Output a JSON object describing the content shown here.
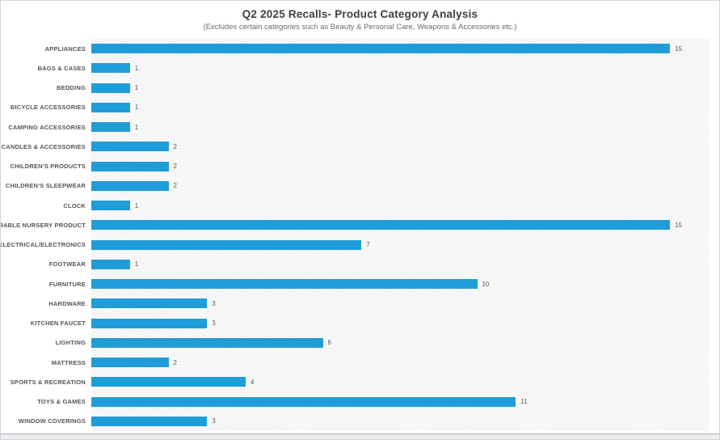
{
  "chart_data": {
    "type": "bar",
    "orientation": "horizontal",
    "title": "Q2 2025 Recalls- Product Category Analysis",
    "subtitle": "(Excludes certain categories such as Beauty & Personal Care, Weapons & Accessories etc.)",
    "categories": [
      "APPLIANCES",
      "BAGS & CASES",
      "BEDDING",
      "BICYCLE ACCESSORIES",
      "CAMPING ACCESSORIES",
      "CANDLES & ACCESSORIES",
      "CHILDREN'S PRODUCTS",
      "CHILDREN'S SLEEPWEAR",
      "CLOCK",
      "DURABLE NURSERY PRODUCT",
      "ELECTRICAL/ELECTRONICS",
      "FOOTWEAR",
      "FURNITURE",
      "HARDWARE",
      "KITCHEN FAUCET",
      "LIGHTING",
      "MATTRESS",
      "SPORTS & RECREATION",
      "TOYS & GAMES",
      "WINDOW COVERINGS"
    ],
    "values": [
      15,
      1,
      1,
      1,
      1,
      2,
      2,
      2,
      1,
      15,
      7,
      1,
      10,
      3,
      3,
      6,
      2,
      4,
      11,
      3
    ],
    "xlim": [
      0,
      16
    ],
    "data_labels": true,
    "grid": false,
    "legend": false,
    "bar_color": "#1f9dd9",
    "label_color": "#595959"
  }
}
